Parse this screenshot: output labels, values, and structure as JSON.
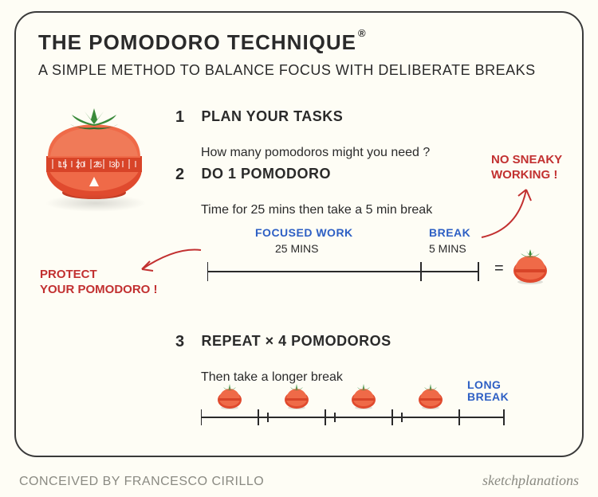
{
  "colors": {
    "background": "#fefdf5",
    "border": "#3a3a3a",
    "text": "#2a2a2a",
    "blue": "#2d5fc4",
    "red_callout": "#c23030",
    "tomato_body": "#e04a2e",
    "tomato_body_light": "#ef6a48",
    "tomato_leaf": "#3a8a3a",
    "tomato_leaf_dark": "#2a6a2a",
    "footer_grey": "#8a8a82"
  },
  "title": "THE POMODORO TECHNIQUE",
  "registered": "®",
  "subtitle": "A SIMPLE METHOD TO BALANCE FOCUS WITH DELIBERATE BREAKS",
  "steps": [
    {
      "num": "1",
      "head": "PLAN YOUR TASKS",
      "sub": "How many pomodoros might you need ?"
    },
    {
      "num": "2",
      "head": "DO 1 POMODORO",
      "sub": "Time for 25 mins then take a 5 min break"
    },
    {
      "num": "3",
      "head": "REPEAT × 4 POMODOROS",
      "sub": "Then take a longer break"
    }
  ],
  "timeline1": {
    "focused_label": "FOCUSED WORK",
    "focused_value": "25 MINS",
    "break_label": "BREAK",
    "break_value": "5 MINS",
    "focused_fraction": 0.83,
    "equals": "="
  },
  "timeline2": {
    "pomodoro_count": 4,
    "long_break_label": "LONG\nBREAK"
  },
  "callouts": {
    "left": "PROTECT\nYOUR POMODORO !",
    "right": "NO SNEAKY\nWORKING !"
  },
  "timer_marks": [
    "15",
    "20",
    "25",
    "30"
  ],
  "footer": {
    "left": "CONCEIVED BY FRANCESCO CIRILLO",
    "right": "sketchplanations"
  }
}
